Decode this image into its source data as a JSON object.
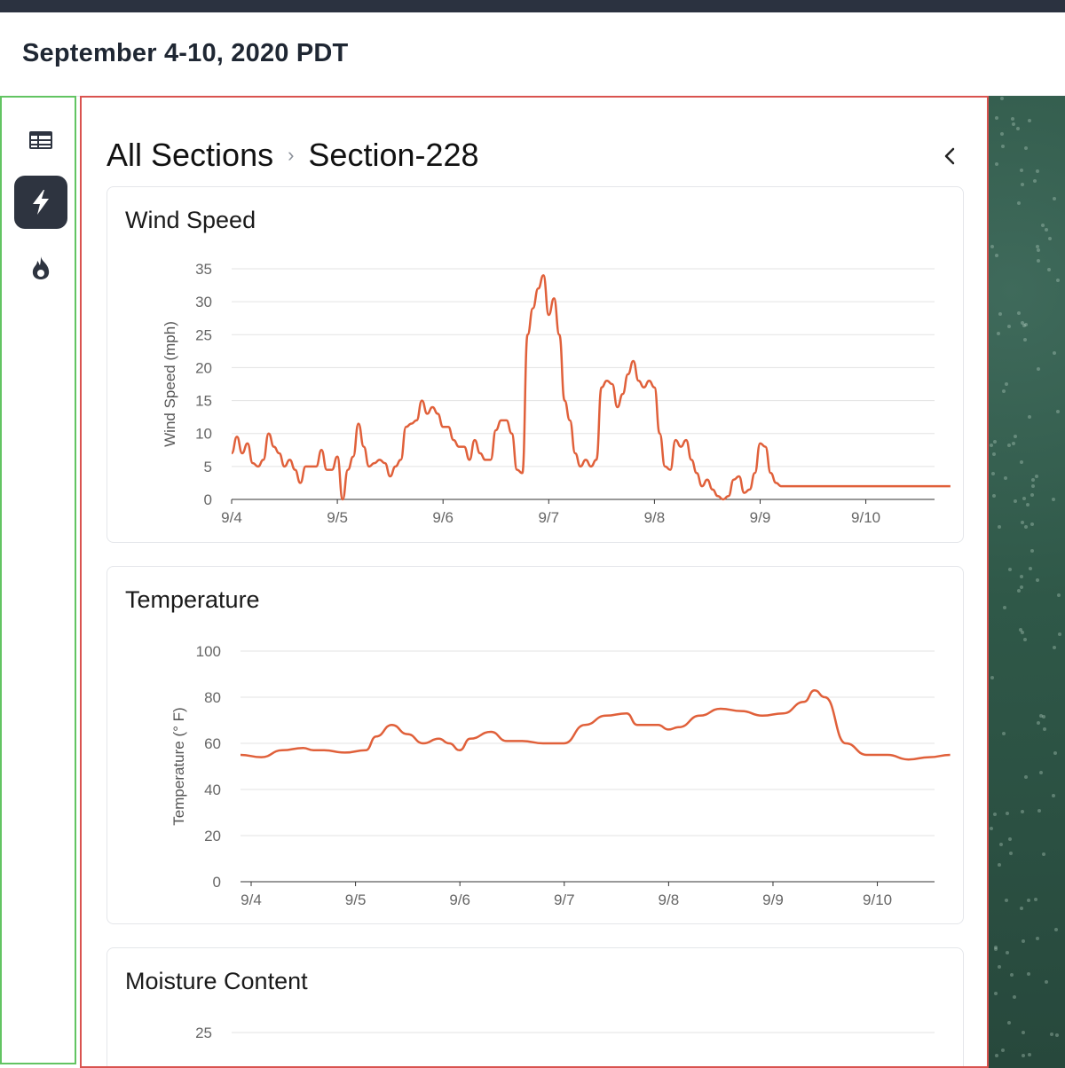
{
  "header": {
    "title": "September 4-10, 2020 PDT"
  },
  "sidebar": {
    "items": [
      {
        "icon": "table-icon",
        "active": false
      },
      {
        "icon": "lightning-icon",
        "active": true
      },
      {
        "icon": "fire-icon",
        "active": false
      }
    ]
  },
  "breadcrumb": {
    "root": "All Sections",
    "separator": "›",
    "current": "Section-228"
  },
  "colors": {
    "series": "#e0603a",
    "accent": "#2e3440",
    "sidebar_border": "#62c462",
    "panel_border": "#d9534f"
  },
  "chart_data": [
    {
      "type": "line",
      "title": "Wind Speed",
      "ylabel": "Wind Speed (mph)",
      "xlabel": "",
      "ylim": [
        0,
        35
      ],
      "yticks": [
        0,
        5,
        10,
        15,
        20,
        25,
        30,
        35
      ],
      "xticks": [
        "9/4",
        "9/5",
        "9/6",
        "9/7",
        "9/8",
        "9/9",
        "9/10"
      ],
      "grid": true,
      "series": [
        {
          "x": [
            0,
            0.05,
            0.1,
            0.15,
            0.2,
            0.25,
            0.3,
            0.35,
            0.4,
            0.45,
            0.5,
            0.55,
            0.6,
            0.65,
            0.7,
            0.75,
            0.8,
            0.85,
            0.9,
            0.95,
            1.0,
            1.05,
            1.1,
            1.15,
            1.2,
            1.25,
            1.3,
            1.35,
            1.4,
            1.45,
            1.5,
            1.55,
            1.6,
            1.65,
            1.7,
            1.75,
            1.8,
            1.85,
            1.9,
            1.95,
            2.0,
            2.05,
            2.1,
            2.15,
            2.2,
            2.25,
            2.3,
            2.35,
            2.4,
            2.45,
            2.5,
            2.55,
            2.6,
            2.65,
            2.7,
            2.75,
            2.8,
            2.85,
            2.9,
            2.95,
            3.0,
            3.05,
            3.1,
            3.15,
            3.2,
            3.25,
            3.3,
            3.35,
            3.4,
            3.45,
            3.5,
            3.55,
            3.6,
            3.65,
            3.7,
            3.75,
            3.8,
            3.85,
            3.9,
            3.95,
            4.0,
            4.05,
            4.1,
            4.15,
            4.2,
            4.25,
            4.3,
            4.35,
            4.4,
            4.45,
            4.5,
            4.55,
            4.6,
            4.65,
            4.7,
            4.75,
            4.8,
            4.85,
            4.9,
            4.95,
            5.0,
            5.05,
            5.1,
            5.15,
            5.2,
            5.25,
            5.3,
            5.35,
            5.4,
            5.45,
            5.5,
            5.55,
            5.6,
            5.65,
            5.7,
            5.75,
            5.8,
            5.85,
            5.9,
            5.95,
            6.0,
            6.05,
            6.1,
            6.15,
            6.2,
            6.25,
            6.3,
            6.35,
            6.4,
            6.45,
            6.5,
            6.55,
            6.6,
            6.65,
            6.7,
            6.75,
            6.8
          ],
          "y": [
            7,
            9.5,
            7,
            8.5,
            5.5,
            5,
            6,
            10,
            8,
            7,
            5,
            6,
            4.5,
            2.5,
            5,
            5,
            5,
            7.5,
            4.5,
            4.5,
            6.5,
            0,
            4.5,
            6.5,
            11.5,
            8,
            5,
            5.5,
            6,
            5.5,
            3.5,
            5,
            6,
            11,
            11.5,
            12,
            15,
            13,
            14,
            13,
            11,
            11,
            9,
            8,
            8,
            6,
            9,
            7,
            6,
            6,
            10.5,
            12,
            12,
            10,
            4.5,
            4,
            25,
            29,
            32,
            34,
            28,
            30.5,
            25,
            15,
            12,
            7,
            5,
            6,
            5,
            6,
            17,
            18,
            17.5,
            14,
            16,
            19,
            21,
            18,
            17,
            18,
            17,
            10,
            5,
            4.5,
            9,
            8,
            9,
            6,
            4,
            2,
            3,
            1.5,
            0.5,
            0,
            0.5,
            3,
            3.5,
            1,
            1.5,
            4,
            8.5,
            8,
            4,
            2.5,
            2,
            2,
            2,
            2,
            2,
            2,
            2,
            2,
            2,
            2,
            2,
            2,
            2,
            2,
            2,
            2,
            2,
            2,
            2,
            2,
            2,
            2,
            2,
            2,
            2,
            2,
            2,
            2,
            2,
            2,
            2,
            2,
            2
          ]
        }
      ]
    },
    {
      "type": "line",
      "title": "Temperature",
      "ylabel": "Temperature (° F)",
      "xlabel": "",
      "ylim": [
        0,
        100
      ],
      "yticks": [
        0,
        20,
        40,
        60,
        80,
        100
      ],
      "xticks": [
        "9/4",
        "9/5",
        "9/6",
        "9/7",
        "9/8",
        "9/9",
        "9/10"
      ],
      "grid": true,
      "series": [
        {
          "x": [
            0,
            0.2,
            0.4,
            0.6,
            0.7,
            0.8,
            1.0,
            1.2,
            1.3,
            1.45,
            1.6,
            1.75,
            1.9,
            2.0,
            2.1,
            2.2,
            2.4,
            2.55,
            2.7,
            2.9,
            3.1,
            3.3,
            3.5,
            3.7,
            3.8,
            3.9,
            4.0,
            4.1,
            4.2,
            4.4,
            4.6,
            4.8,
            5.0,
            5.2,
            5.4,
            5.5,
            5.6,
            5.8,
            6.0,
            6.2,
            6.4,
            6.6,
            6.8
          ],
          "y": [
            55,
            54,
            57,
            58,
            57,
            57,
            56,
            57,
            63,
            68,
            64,
            60,
            62,
            60,
            57,
            62,
            65,
            61,
            61,
            60,
            60,
            68,
            72,
            73,
            68,
            68,
            68,
            66,
            67,
            72,
            75,
            74,
            72,
            73,
            78,
            83,
            80,
            60,
            55,
            55,
            53,
            54,
            55
          ]
        }
      ]
    },
    {
      "type": "line",
      "title": "Moisture Content",
      "ylabel": "",
      "xlabel": "",
      "yticks": [
        25
      ],
      "grid": true,
      "series": []
    }
  ]
}
